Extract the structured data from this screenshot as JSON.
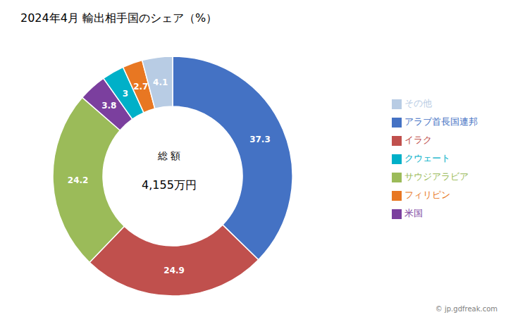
{
  "chart_data": {
    "type": "pie",
    "title": "2024年4月 輸出相手国のシェア（%）",
    "categories": [
      "アラブ首長国連邦",
      "イラク",
      "サウジアラビア",
      "米国",
      "クウェート",
      "フィリピン",
      "その他"
    ],
    "values": [
      37.3,
      24.9,
      24.2,
      3.8,
      3.0,
      2.7,
      4.1
    ],
    "colors": [
      "#4472C4",
      "#C0504D",
      "#9BBB59",
      "#7B3F9E",
      "#00B0C8",
      "#E87722",
      "#B8CCE4"
    ],
    "data_labels": true,
    "legend": "right",
    "annotations": [
      "総 額",
      "4,155万円",
      "© jp.gdfreak.com"
    ]
  }
}
